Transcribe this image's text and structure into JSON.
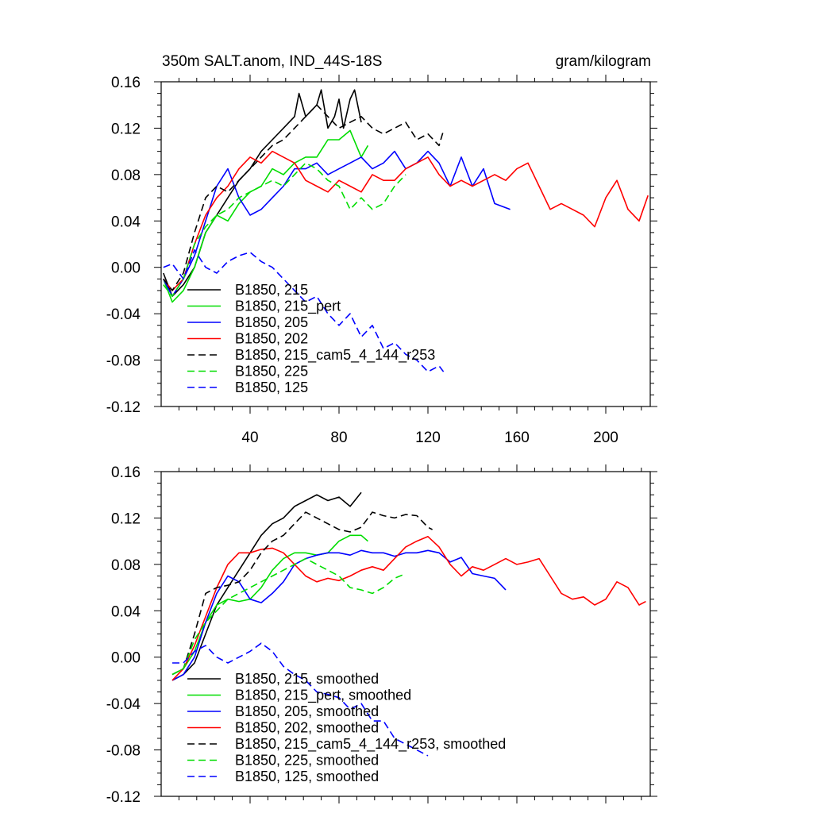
{
  "chart_data": [
    {
      "type": "line",
      "title": "350m SALT.anom, IND_44S-18S",
      "units": "gram/kilogram",
      "xlim": [
        0,
        220
      ],
      "ylim": [
        -0.12,
        0.16
      ],
      "x_ticks": [
        40,
        80,
        120,
        160,
        200
      ],
      "y_ticks": [
        "0.16",
        "0.12",
        "0.08",
        "0.04",
        "0.00",
        "-0.04",
        "-0.08",
        "-0.12"
      ],
      "legend_position": "bottom-left",
      "series": [
        {
          "name": "B1850, 215",
          "color": "#000000",
          "dash": "solid",
          "x": [
            1,
            5,
            10,
            15,
            20,
            25,
            30,
            35,
            40,
            45,
            50,
            55,
            60,
            62,
            65,
            70,
            72,
            75,
            78,
            80,
            82,
            85,
            87,
            90
          ],
          "y": [
            -0.005,
            -0.025,
            -0.015,
            0.0,
            0.03,
            0.045,
            0.06,
            0.075,
            0.085,
            0.1,
            0.11,
            0.12,
            0.13,
            0.15,
            0.13,
            0.14,
            0.153,
            0.12,
            0.13,
            0.145,
            0.12,
            0.145,
            0.153,
            0.125
          ]
        },
        {
          "name": "B1850, 215_pert",
          "color": "#00dd00",
          "dash": "solid",
          "x": [
            1,
            5,
            10,
            15,
            20,
            25,
            30,
            35,
            40,
            45,
            50,
            55,
            60,
            65,
            70,
            75,
            80,
            85,
            90,
            93
          ],
          "y": [
            -0.01,
            -0.03,
            -0.02,
            0.0,
            0.03,
            0.045,
            0.04,
            0.055,
            0.065,
            0.07,
            0.085,
            0.08,
            0.09,
            0.095,
            0.095,
            0.11,
            0.11,
            0.118,
            0.095,
            0.105
          ]
        },
        {
          "name": "B1850, 205",
          "color": "#0000ff",
          "dash": "solid",
          "x": [
            1,
            5,
            10,
            15,
            20,
            25,
            30,
            35,
            40,
            45,
            50,
            55,
            60,
            65,
            70,
            75,
            80,
            85,
            90,
            95,
            100,
            105,
            110,
            115,
            120,
            125,
            130,
            135,
            140,
            145,
            150,
            157
          ],
          "y": [
            -0.01,
            -0.025,
            -0.01,
            0.01,
            0.04,
            0.07,
            0.085,
            0.06,
            0.045,
            0.05,
            0.06,
            0.07,
            0.085,
            0.085,
            0.09,
            0.08,
            0.085,
            0.09,
            0.095,
            0.085,
            0.09,
            0.1,
            0.085,
            0.09,
            0.1,
            0.09,
            0.07,
            0.095,
            0.07,
            0.085,
            0.055,
            0.05
          ]
        },
        {
          "name": "B1850, 202",
          "color": "#ff0000",
          "dash": "solid",
          "x": [
            1,
            5,
            10,
            15,
            20,
            25,
            30,
            35,
            40,
            45,
            50,
            55,
            60,
            65,
            70,
            75,
            80,
            85,
            90,
            95,
            100,
            105,
            110,
            115,
            120,
            125,
            130,
            135,
            140,
            145,
            150,
            155,
            160,
            165,
            170,
            175,
            180,
            185,
            190,
            195,
            200,
            205,
            210,
            215,
            219
          ],
          "y": [
            -0.01,
            -0.02,
            -0.01,
            0.02,
            0.045,
            0.06,
            0.07,
            0.085,
            0.095,
            0.09,
            0.1,
            0.095,
            0.09,
            0.075,
            0.07,
            0.065,
            0.075,
            0.07,
            0.065,
            0.08,
            0.075,
            0.075,
            0.085,
            0.09,
            0.095,
            0.08,
            0.07,
            0.075,
            0.07,
            0.075,
            0.08,
            0.075,
            0.085,
            0.09,
            0.07,
            0.05,
            0.055,
            0.05,
            0.045,
            0.035,
            0.06,
            0.075,
            0.05,
            0.04,
            0.062
          ]
        },
        {
          "name": "B1850, 215_cam5_4_144_r253",
          "color": "#000000",
          "dash": "dashed",
          "x": [
            1,
            5,
            10,
            15,
            20,
            25,
            30,
            35,
            40,
            45,
            50,
            55,
            60,
            65,
            70,
            75,
            80,
            85,
            90,
            95,
            100,
            105,
            110,
            115,
            120,
            125,
            127
          ],
          "y": [
            -0.01,
            -0.02,
            -0.005,
            0.03,
            0.06,
            0.07,
            0.065,
            0.075,
            0.085,
            0.095,
            0.105,
            0.11,
            0.12,
            0.13,
            0.14,
            0.13,
            0.12,
            0.125,
            0.13,
            0.12,
            0.115,
            0.12,
            0.125,
            0.11,
            0.115,
            0.105,
            0.118
          ]
        },
        {
          "name": "B1850, 225",
          "color": "#00dd00",
          "dash": "dashed",
          "x": [
            1,
            5,
            10,
            15,
            20,
            25,
            30,
            35,
            40,
            45,
            50,
            55,
            60,
            65,
            70,
            75,
            80,
            85,
            90,
            95,
            100,
            105,
            110
          ],
          "y": [
            -0.015,
            -0.025,
            -0.01,
            0.02,
            0.035,
            0.045,
            0.05,
            0.06,
            0.065,
            0.07,
            0.075,
            0.07,
            0.08,
            0.09,
            0.085,
            0.075,
            0.07,
            0.05,
            0.06,
            0.05,
            0.055,
            0.07,
            0.08
          ]
        },
        {
          "name": "B1850, 125",
          "color": "#0000ff",
          "dash": "dashed",
          "x": [
            1,
            5,
            10,
            15,
            20,
            25,
            30,
            35,
            40,
            45,
            50,
            55,
            60,
            65,
            70,
            75,
            80,
            85,
            90,
            95,
            100,
            105,
            110,
            115,
            120,
            125,
            127
          ],
          "y": [
            0.0,
            0.003,
            -0.01,
            0.015,
            0.0,
            -0.005,
            0.005,
            0.01,
            0.013,
            0.005,
            0.0,
            -0.01,
            -0.02,
            -0.03,
            -0.025,
            -0.04,
            -0.05,
            -0.04,
            -0.06,
            -0.05,
            -0.07,
            -0.065,
            -0.075,
            -0.08,
            -0.09,
            -0.085,
            -0.09
          ]
        }
      ]
    },
    {
      "type": "line",
      "title": "",
      "units": "",
      "xlim": [
        0,
        220
      ],
      "ylim": [
        -0.12,
        0.16
      ],
      "x_ticks": [],
      "y_ticks": [
        "0.16",
        "0.12",
        "0.08",
        "0.04",
        "0.00",
        "-0.04",
        "-0.08",
        "-0.12"
      ],
      "legend_position": "bottom-left",
      "series": [
        {
          "name": "B1850, 215, smoothed",
          "color": "#000000",
          "dash": "solid",
          "x": [
            5,
            10,
            15,
            20,
            25,
            30,
            35,
            40,
            45,
            50,
            55,
            60,
            65,
            70,
            75,
            80,
            85,
            90
          ],
          "y": [
            -0.02,
            -0.015,
            -0.005,
            0.02,
            0.045,
            0.06,
            0.075,
            0.09,
            0.105,
            0.115,
            0.12,
            0.13,
            0.135,
            0.14,
            0.135,
            0.138,
            0.13,
            0.142
          ]
        },
        {
          "name": "B1850, 215_pert, smoothed",
          "color": "#00dd00",
          "dash": "solid",
          "x": [
            5,
            10,
            15,
            20,
            25,
            30,
            35,
            40,
            45,
            50,
            55,
            60,
            65,
            70,
            75,
            80,
            85,
            90,
            93
          ],
          "y": [
            -0.015,
            -0.01,
            0.005,
            0.03,
            0.045,
            0.05,
            0.048,
            0.05,
            0.06,
            0.075,
            0.085,
            0.09,
            0.09,
            0.088,
            0.09,
            0.1,
            0.105,
            0.105,
            0.1
          ]
        },
        {
          "name": "B1850, 205, smoothed",
          "color": "#0000ff",
          "dash": "solid",
          "x": [
            5,
            10,
            15,
            20,
            25,
            30,
            35,
            40,
            45,
            50,
            55,
            60,
            65,
            70,
            75,
            80,
            85,
            90,
            95,
            100,
            105,
            110,
            115,
            120,
            125,
            130,
            135,
            140,
            145,
            150,
            155
          ],
          "y": [
            -0.02,
            -0.015,
            0.0,
            0.03,
            0.055,
            0.07,
            0.065,
            0.05,
            0.047,
            0.055,
            0.065,
            0.08,
            0.085,
            0.088,
            0.09,
            0.09,
            0.088,
            0.092,
            0.09,
            0.09,
            0.087,
            0.09,
            0.09,
            0.092,
            0.09,
            0.082,
            0.086,
            0.072,
            0.07,
            0.068,
            0.058
          ]
        },
        {
          "name": "B1850, 202, smoothed",
          "color": "#ff0000",
          "dash": "solid",
          "x": [
            5,
            10,
            15,
            20,
            25,
            30,
            35,
            40,
            45,
            50,
            55,
            60,
            65,
            70,
            75,
            80,
            85,
            90,
            95,
            100,
            105,
            110,
            115,
            120,
            125,
            130,
            135,
            140,
            145,
            150,
            155,
            160,
            165,
            170,
            175,
            180,
            185,
            190,
            195,
            200,
            205,
            210,
            215,
            218
          ],
          "y": [
            -0.02,
            -0.01,
            0.01,
            0.035,
            0.06,
            0.08,
            0.09,
            0.09,
            0.093,
            0.094,
            0.09,
            0.08,
            0.07,
            0.065,
            0.068,
            0.066,
            0.07,
            0.075,
            0.078,
            0.075,
            0.085,
            0.095,
            0.1,
            0.104,
            0.095,
            0.08,
            0.07,
            0.078,
            0.075,
            0.08,
            0.085,
            0.08,
            0.082,
            0.085,
            0.07,
            0.055,
            0.05,
            0.052,
            0.045,
            0.05,
            0.065,
            0.06,
            0.045,
            0.048
          ]
        },
        {
          "name": "B1850, 215_cam5_4_144_r253, smoothed",
          "color": "#000000",
          "dash": "dashed",
          "x": [
            5,
            10,
            15,
            20,
            25,
            30,
            35,
            40,
            45,
            50,
            55,
            60,
            65,
            70,
            75,
            80,
            85,
            90,
            95,
            100,
            105,
            110,
            115,
            120,
            122
          ],
          "y": [
            -0.015,
            -0.01,
            0.02,
            0.055,
            0.06,
            0.062,
            0.065,
            0.075,
            0.09,
            0.1,
            0.105,
            0.115,
            0.125,
            0.12,
            0.115,
            0.11,
            0.108,
            0.112,
            0.125,
            0.122,
            0.12,
            0.123,
            0.122,
            0.112,
            0.11
          ]
        },
        {
          "name": "B1850, 225, smoothed",
          "color": "#00dd00",
          "dash": "dashed",
          "x": [
            5,
            10,
            15,
            20,
            25,
            30,
            35,
            40,
            45,
            50,
            55,
            60,
            65,
            70,
            75,
            80,
            85,
            90,
            95,
            100,
            105,
            110
          ],
          "y": [
            -0.015,
            -0.01,
            0.015,
            0.03,
            0.04,
            0.05,
            0.055,
            0.06,
            0.065,
            0.07,
            0.075,
            0.08,
            0.085,
            0.08,
            0.075,
            0.07,
            0.06,
            0.058,
            0.055,
            0.06,
            0.068,
            0.072
          ]
        },
        {
          "name": "B1850, 125, smoothed",
          "color": "#0000ff",
          "dash": "dashed",
          "x": [
            5,
            10,
            15,
            20,
            25,
            30,
            35,
            40,
            45,
            50,
            55,
            60,
            65,
            70,
            75,
            80,
            85,
            90,
            95,
            100,
            105,
            110,
            115,
            120
          ],
          "y": [
            -0.005,
            -0.005,
            0.005,
            0.01,
            0.0,
            -0.005,
            0.0,
            0.005,
            0.012,
            0.005,
            -0.008,
            -0.015,
            -0.02,
            -0.03,
            -0.032,
            -0.035,
            -0.045,
            -0.04,
            -0.055,
            -0.055,
            -0.07,
            -0.075,
            -0.08,
            -0.085
          ]
        }
      ]
    }
  ]
}
